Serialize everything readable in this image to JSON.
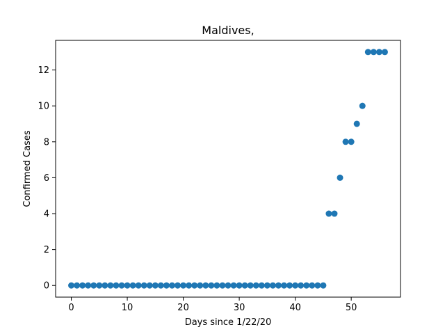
{
  "chart_data": {
    "type": "scatter",
    "title": "Maldives,",
    "xlabel": "Days since 1/22/20",
    "ylabel": "Confirmed Cases",
    "xlim": [
      -2.8,
      58.8
    ],
    "ylim": [
      -0.65,
      13.65
    ],
    "xticks": [
      0,
      10,
      20,
      30,
      40,
      50
    ],
    "yticks": [
      0,
      2,
      4,
      6,
      8,
      10,
      12
    ],
    "grid": false,
    "marker_color": "#1f77b4",
    "series": [
      {
        "x": [
          0,
          1,
          2,
          3,
          4,
          5,
          6,
          7,
          8,
          9,
          10,
          11,
          12,
          13,
          14,
          15,
          16,
          17,
          18,
          19,
          20,
          21,
          22,
          23,
          24,
          25,
          26,
          27,
          28,
          29,
          30,
          31,
          32,
          33,
          34,
          35,
          36,
          37,
          38,
          39,
          40,
          41,
          42,
          43,
          44,
          45,
          46,
          47,
          48,
          49,
          50,
          51,
          52,
          53,
          54,
          55,
          56
        ],
        "y": [
          0,
          0,
          0,
          0,
          0,
          0,
          0,
          0,
          0,
          0,
          0,
          0,
          0,
          0,
          0,
          0,
          0,
          0,
          0,
          0,
          0,
          0,
          0,
          0,
          0,
          0,
          0,
          0,
          0,
          0,
          0,
          0,
          0,
          0,
          0,
          0,
          0,
          0,
          0,
          0,
          0,
          0,
          0,
          0,
          0,
          0,
          4,
          4,
          6,
          8,
          8,
          9,
          10,
          13,
          13,
          13,
          13
        ]
      }
    ]
  }
}
